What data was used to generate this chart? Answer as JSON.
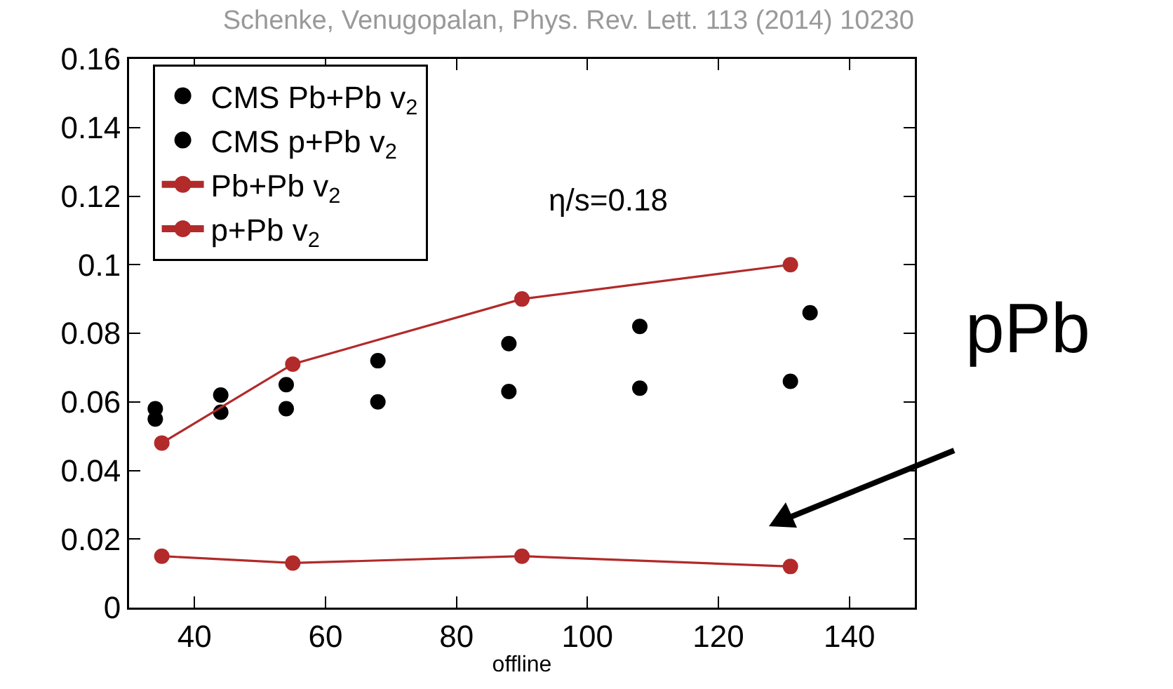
{
  "chart_data": {
    "type": "scatter",
    "title": "Schenke, Venugopalan, Phys. Rev. Lett. 113 (2014) 10230",
    "xlabel": "offline",
    "xlim": [
      30,
      150
    ],
    "xticks": [
      40,
      60,
      80,
      100,
      120,
      140
    ],
    "ylim": [
      0,
      0.16
    ],
    "yticks": [
      0,
      0.02,
      0.04,
      0.06,
      0.08,
      0.1,
      0.12,
      0.14,
      0.16
    ],
    "grid": false,
    "legend": "top left",
    "marker": "circle",
    "series": [
      {
        "name": "CMS Pb+Pb v$_{2}$",
        "color": "#000000",
        "x": [
          34,
          44,
          54,
          68,
          88,
          108,
          134
        ],
        "values": [
          0.058,
          0.062,
          0.065,
          0.072,
          0.077,
          0.082,
          0.086
        ]
      },
      {
        "name": "CMS p+Pb v$_{2}$",
        "color": "#000000",
        "x": [
          34,
          44,
          54,
          68,
          88,
          108,
          131
        ],
        "values": [
          0.055,
          0.057,
          0.058,
          0.06,
          0.063,
          0.064,
          0.066
        ]
      },
      {
        "name": "Pb+Pb v$_{2}$",
        "color": "#b22a2a",
        "type": "line",
        "x": [
          35,
          55,
          90,
          131
        ],
        "values": [
          0.048,
          0.071,
          0.09,
          0.1
        ]
      },
      {
        "name": "p+Pb v$_{2}$",
        "color": "#b22a2a",
        "type": "line",
        "x": [
          35,
          55,
          90,
          131
        ],
        "values": [
          0.015,
          0.013,
          0.015,
          0.012
        ]
      }
    ],
    "annotations": [
      "η/s=0.18",
      "pPb"
    ]
  }
}
